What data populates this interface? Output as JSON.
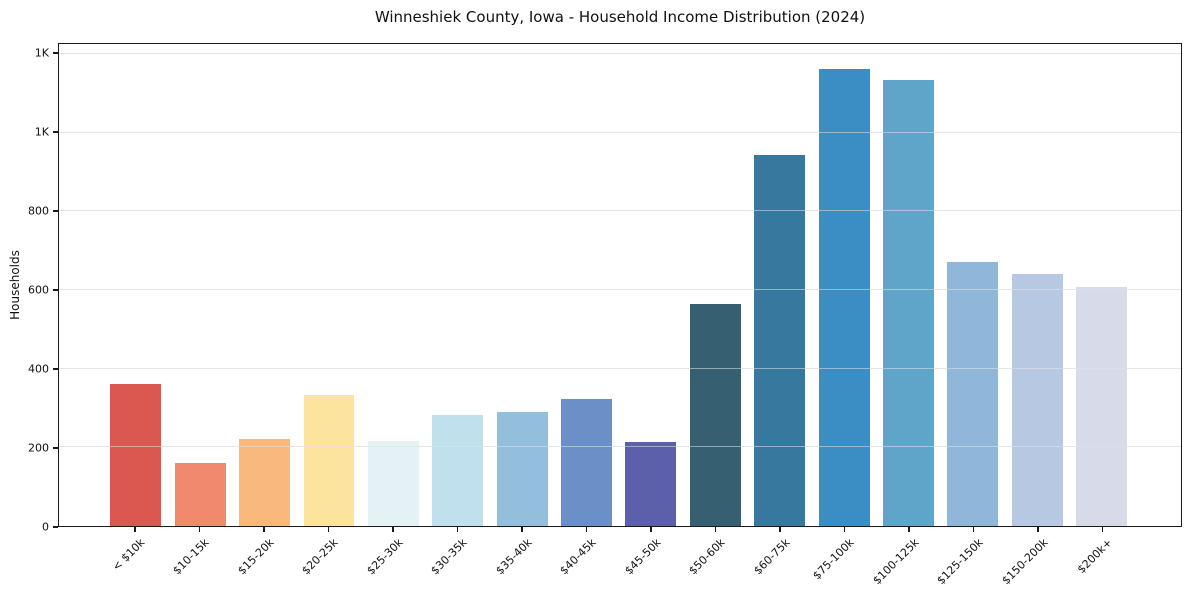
{
  "chart_data": {
    "type": "bar",
    "title": "Winneshiek County, Iowa - Household Income Distribution (2024)",
    "xlabel": "",
    "ylabel": "Households",
    "categories": [
      "< $10k",
      "$10-15k",
      "$15-20k",
      "$20-25k",
      "$25-30k",
      "$30-35k",
      "$35-40k",
      "$40-45k",
      "$45-50k",
      "$50-60k",
      "$60-75k",
      "$75-100k",
      "$100-125k",
      "$125-150k",
      "$150-200k",
      "$200k+"
    ],
    "values": [
      360,
      160,
      221,
      332,
      216,
      283,
      289,
      324,
      214,
      565,
      944,
      1161,
      1134,
      672,
      641,
      607
    ],
    "bar_colors": [
      "#db5851",
      "#f1896c",
      "#f9b97d",
      "#fce49e",
      "#e4f2f5",
      "#bfe0ec",
      "#93bedc",
      "#6b90c8",
      "#5c5fa9",
      "#375f72",
      "#37799e",
      "#3a8ec4",
      "#5fa5ca",
      "#90b7d9",
      "#b7c9e2",
      "#d7dae8"
    ],
    "ylim": [
      0,
      1225
    ],
    "yticks": [
      {
        "value": 0,
        "label": "0"
      },
      {
        "value": 200,
        "label": "200"
      },
      {
        "value": 400,
        "label": "400"
      },
      {
        "value": 600,
        "label": "600"
      },
      {
        "value": 800,
        "label": "800"
      },
      {
        "value": 1000,
        "label": "1K"
      },
      {
        "value": 1200,
        "label": "1K"
      }
    ],
    "grid": "horizontal-only",
    "legend": "none"
  },
  "colors": {
    "background": "#ffffff",
    "gridline": "#e9e9e9",
    "spine": "#1a1a1a",
    "text": "#111111"
  }
}
